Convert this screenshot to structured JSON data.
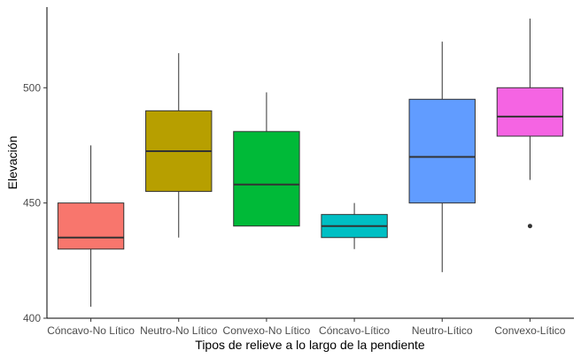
{
  "chart_data": {
    "type": "boxplot",
    "title": "",
    "xlabel": "Tipos de relieve a lo largo de la pendiente",
    "ylabel": "Elevación",
    "ylim": [
      400,
      535
    ],
    "yticks": [
      400,
      450,
      500
    ],
    "grid": false,
    "categories": [
      "Cóncavo-No Lítico",
      "Neutro-No Lítico",
      "Convexo-No Lítico",
      "Cóncavo-Lítico",
      "Neutro-Lítico",
      "Convexo-Lítico"
    ],
    "series": [
      {
        "category": "Cóncavo-No Lítico",
        "color": "#F8766D",
        "min": 405,
        "q1": 430,
        "median": 435,
        "q3": 450,
        "max": 475,
        "outliers": []
      },
      {
        "category": "Neutro-No Lítico",
        "color": "#B79F00",
        "min": 435,
        "q1": 455,
        "median": 472.5,
        "q3": 490,
        "max": 515,
        "outliers": []
      },
      {
        "category": "Convexo-No Lítico",
        "color": "#00BA38",
        "min": 440,
        "q1": 440,
        "median": 458,
        "q3": 481,
        "max": 498,
        "outliers": []
      },
      {
        "category": "Cóncavo-Lítico",
        "color": "#00BFC4",
        "min": 430,
        "q1": 435,
        "median": 440,
        "q3": 445,
        "max": 450,
        "outliers": []
      },
      {
        "category": "Neutro-Lítico",
        "color": "#619CFF",
        "min": 420,
        "q1": 450,
        "median": 470,
        "q3": 495,
        "max": 520,
        "outliers": []
      },
      {
        "category": "Convexo-Lítico",
        "color": "#F564E3",
        "min": 460,
        "q1": 479,
        "median": 487.5,
        "q3": 500,
        "max": 530,
        "outliers": [
          440
        ]
      }
    ]
  }
}
